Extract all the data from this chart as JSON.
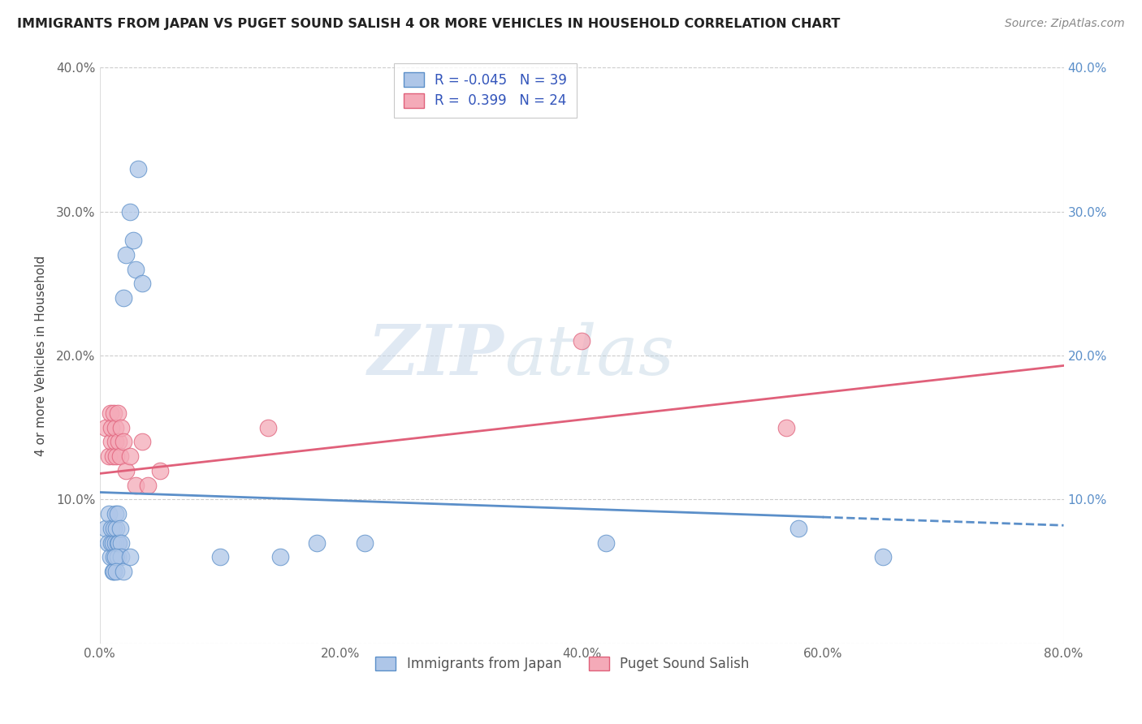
{
  "title": "IMMIGRANTS FROM JAPAN VS PUGET SOUND SALISH 4 OR MORE VEHICLES IN HOUSEHOLD CORRELATION CHART",
  "source": "Source: ZipAtlas.com",
  "ylabel": "4 or more Vehicles in Household",
  "xlim": [
    0.0,
    0.8
  ],
  "ylim": [
    0.0,
    0.4
  ],
  "xtick_labels": [
    "0.0%",
    "",
    "20.0%",
    "",
    "40.0%",
    "",
    "60.0%",
    "",
    "80.0%"
  ],
  "xtick_vals": [
    0.0,
    0.1,
    0.2,
    0.3,
    0.4,
    0.5,
    0.6,
    0.7,
    0.8
  ],
  "ytick_labels_left": [
    "",
    "10.0%",
    "20.0%",
    "30.0%",
    "40.0%"
  ],
  "ytick_labels_right": [
    "",
    "10.0%",
    "20.0%",
    "30.0%",
    "40.0%"
  ],
  "ytick_vals": [
    0.0,
    0.1,
    0.2,
    0.3,
    0.4
  ],
  "color_blue": "#aec6e8",
  "color_pink": "#f4aab8",
  "line_blue": "#5b8fc9",
  "line_pink": "#e0607a",
  "watermark_zip": "ZIP",
  "watermark_atlas": "atlas",
  "blue_line_solid_end": 0.6,
  "blue_x": [
    0.005,
    0.007,
    0.008,
    0.009,
    0.01,
    0.01,
    0.011,
    0.011,
    0.012,
    0.012,
    0.013,
    0.013,
    0.014,
    0.015,
    0.015,
    0.015,
    0.016,
    0.017,
    0.018,
    0.018,
    0.02,
    0.022,
    0.025,
    0.028,
    0.03,
    0.032,
    0.035,
    0.012,
    0.013,
    0.014,
    0.02,
    0.025,
    0.1,
    0.15,
    0.18,
    0.22,
    0.42,
    0.58,
    0.65
  ],
  "blue_y": [
    0.08,
    0.07,
    0.09,
    0.06,
    0.07,
    0.08,
    0.05,
    0.07,
    0.06,
    0.08,
    0.07,
    0.09,
    0.08,
    0.06,
    0.07,
    0.09,
    0.07,
    0.08,
    0.07,
    0.06,
    0.24,
    0.27,
    0.3,
    0.28,
    0.26,
    0.33,
    0.25,
    0.05,
    0.06,
    0.05,
    0.05,
    0.06,
    0.06,
    0.06,
    0.07,
    0.07,
    0.07,
    0.08,
    0.06
  ],
  "pink_x": [
    0.005,
    0.008,
    0.009,
    0.01,
    0.01,
    0.011,
    0.012,
    0.013,
    0.013,
    0.014,
    0.015,
    0.016,
    0.017,
    0.018,
    0.02,
    0.022,
    0.025,
    0.03,
    0.035,
    0.04,
    0.05,
    0.14,
    0.4,
    0.57
  ],
  "pink_y": [
    0.15,
    0.13,
    0.16,
    0.14,
    0.15,
    0.13,
    0.16,
    0.14,
    0.15,
    0.13,
    0.16,
    0.14,
    0.13,
    0.15,
    0.14,
    0.12,
    0.13,
    0.11,
    0.14,
    0.11,
    0.12,
    0.15,
    0.21,
    0.15
  ],
  "blue_line_x": [
    0.0,
    0.8
  ],
  "blue_line_y": [
    0.105,
    0.082
  ],
  "pink_line_x": [
    0.0,
    0.8
  ],
  "pink_line_y": [
    0.118,
    0.193
  ]
}
